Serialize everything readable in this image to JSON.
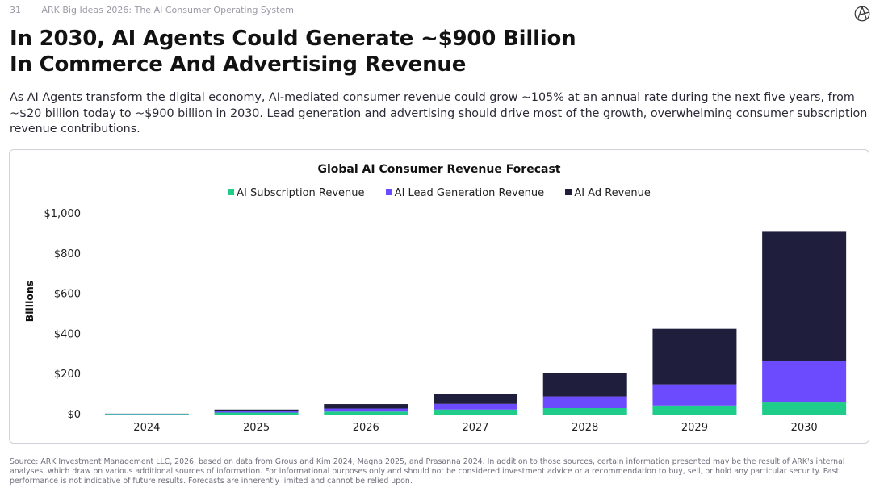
{
  "header": {
    "page_number": "31",
    "report_title": "ARK Big Ideas 2026: The AI Consumer Operating System",
    "logo_icon": "ark-logo-icon"
  },
  "title_line1": "In 2030, AI Agents Could Generate ~$900 Billion",
  "title_line2": "In Commerce And Advertising Revenue",
  "intro": "As AI Agents transform the digital economy, AI-mediated consumer revenue could grow ~105% at an annual rate during the next five years, from ~$20 billion today to ~$900 billion in 2030. Lead generation and advertising should drive most of the growth, overwhelming consumer subscription revenue contributions.",
  "chart_data": {
    "type": "bar",
    "stacked": true,
    "title": "Global AI Consumer Revenue Forecast",
    "xlabel": "",
    "ylabel": "Billions",
    "ylim": [
      0,
      1000
    ],
    "yticks": [
      0,
      200,
      400,
      600,
      800,
      1000
    ],
    "ytick_labels": [
      "$0",
      "$200",
      "$400",
      "$600",
      "$800",
      "$1,000"
    ],
    "categories": [
      "2024",
      "2025",
      "2026",
      "2027",
      "2028",
      "2029",
      "2030"
    ],
    "series": [
      {
        "name": "AI Subscription Revenue",
        "color": "#1fcc8a",
        "values": [
          3,
          10,
          15,
          25,
          32,
          45,
          60
        ]
      },
      {
        "name": "AI Lead Generation Revenue",
        "color": "#6c4bff",
        "values": [
          1,
          6,
          15,
          28,
          58,
          105,
          205
        ]
      },
      {
        "name": "AI Ad Revenue",
        "color": "#1f1f3d",
        "values": [
          0.5,
          9,
          22,
          48,
          118,
          277,
          645
        ]
      }
    ],
    "legend_position": "top-center",
    "grid": false
  },
  "source": "Source: ARK Investment Management LLC, 2026, based on data from Grous and Kim 2024, Magna 2025, and Prasanna 2024. In addition to those sources, certain information presented may be the result of ARK's internal analyses, which draw on various additional sources of information. For informational purposes only and should not be considered investment advice or a recommendation to buy, sell, or hold any particular security. Past performance is not indicative of future results. Forecasts are inherently limited and cannot be relied upon."
}
